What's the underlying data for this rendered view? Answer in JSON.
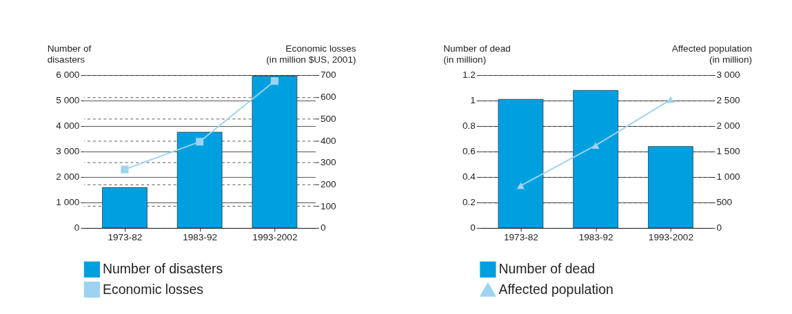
{
  "chart_data": [
    {
      "type": "bar",
      "categories": [
        "1973-82",
        "1983-92",
        "1993-2002"
      ],
      "ylabel": "Number of\ndisasters",
      "y2label": "Economic losses\n(in million $US, 2001)",
      "ylim": [
        0,
        6000
      ],
      "yticks": [
        0,
        {
          "value": 1000,
          "label": "1 000"
        },
        {
          "value": 2000,
          "label": "2 000"
        },
        {
          "value": 3000,
          "label": "3 000"
        },
        {
          "value": 4000,
          "label": "4 000"
        },
        {
          "value": 5000,
          "label": "5 000"
        },
        {
          "value": 6000,
          "label": "6 000"
        }
      ],
      "y2lim": [
        0,
        700
      ],
      "y2ticks": [
        0,
        100,
        200,
        300,
        400,
        500,
        600,
        700
      ],
      "grid": true,
      "legend": "bottom",
      "series": [
        {
          "name": "Number of disasters",
          "color": "#00a0e0",
          "values": [
            1590,
            3760,
            5960
          ]
        },
        {
          "name": "Economic losses",
          "type": "line",
          "axis": "y2",
          "marker": "square",
          "color": "#9dd3f0",
          "values": [
            268,
            395,
            673
          ]
        }
      ]
    },
    {
      "type": "bar",
      "categories": [
        "1973-82",
        "1983-92",
        "1993-2002"
      ],
      "ylabel": "Number of dead\n(in million)",
      "y2label": "Affected population\n(in million)",
      "ylim": [
        0,
        1.2
      ],
      "yticks": [
        0,
        0.2,
        0.4,
        0.6,
        0.8,
        1,
        1.2
      ],
      "y2lim": [
        0,
        3000
      ],
      "y2ticks": [
        0,
        500,
        {
          "value": 1000,
          "label": "1 000"
        },
        {
          "value": 1500,
          "label": "1 500"
        },
        {
          "value": 2000,
          "label": "2 000"
        },
        {
          "value": 2500,
          "label": "2 500"
        },
        {
          "value": 3000,
          "label": "3 000"
        }
      ],
      "grid": true,
      "legend": "bottom",
      "series": [
        {
          "name": "Number of dead",
          "color": "#00a0e0",
          "values": [
            1.01,
            1.08,
            0.64
          ]
        },
        {
          "name": "Affected population",
          "type": "line",
          "axis": "y2",
          "marker": "triangle",
          "color": "#9dd3f0",
          "values": [
            830,
            1620,
            2520
          ]
        }
      ]
    }
  ]
}
